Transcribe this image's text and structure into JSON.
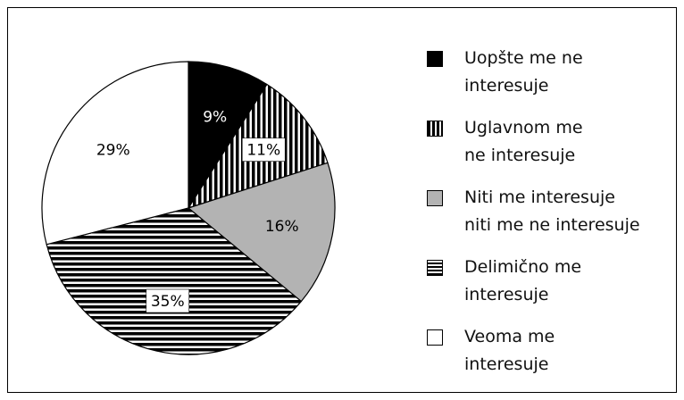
{
  "chart_data": {
    "type": "pie",
    "categories": [
      "Uopšte me ne\ninteresuje",
      "Uglavnom me\nne interesuje",
      "Niti me interesuje\nniti me ne interesuje",
      "Delimično me\ninteresuje",
      "Veoma me\ninteresuje"
    ],
    "values": [
      9,
      11,
      16,
      35,
      29
    ],
    "value_labels": [
      "9%",
      "11%",
      "16%",
      "35%",
      "29%"
    ],
    "colors": [
      "#000000",
      "#000000",
      "#b3b3b3",
      "#000000",
      "#ffffff"
    ],
    "patterns": [
      "solid",
      "vertical-stripes",
      "solid",
      "horizontal-stripes",
      "solid"
    ],
    "start_angle": 0,
    "direction": "clockwise",
    "legend": "right"
  }
}
